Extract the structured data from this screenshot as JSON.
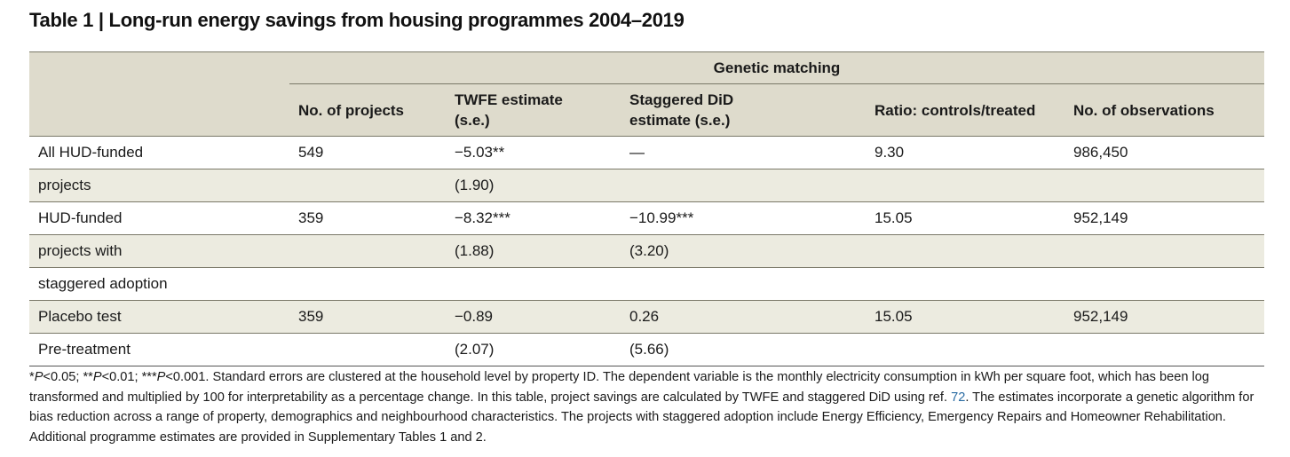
{
  "title": "Table 1 | Long-run energy savings from housing programmes 2004–2019",
  "table": {
    "group_header": "Genetic matching",
    "columns": [
      "No. of projects",
      "TWFE estimate (s.e.)",
      "Staggered DiD estimate (s.e.)",
      "Ratio: controls/treated",
      "No. of observations"
    ],
    "col_lines": {
      "twfe": [
        "TWFE estimate",
        "(s.e.)"
      ],
      "did": [
        "Staggered DiD",
        "estimate (s.e.)"
      ]
    },
    "rows": [
      {
        "label": "All HUD-funded",
        "projects": "549",
        "twfe": "−5.03**",
        "did": "—",
        "ratio": "9.30",
        "obs": "986,450"
      },
      {
        "label": "projects",
        "projects": "",
        "twfe": "(1.90)",
        "did": "",
        "ratio": "",
        "obs": ""
      },
      {
        "label": "HUD-funded",
        "projects": "359",
        "twfe": "−8.32***",
        "did": "−10.99***",
        "ratio": "15.05",
        "obs": "952,149"
      },
      {
        "label": "projects with",
        "projects": "",
        "twfe": "(1.88)",
        "did": "(3.20)",
        "ratio": "",
        "obs": ""
      },
      {
        "label": "staggered adoption",
        "projects": "",
        "twfe": "",
        "did": "",
        "ratio": "",
        "obs": ""
      },
      {
        "label": "Placebo test",
        "projects": "359",
        "twfe": "−0.89",
        "did": "0.26",
        "ratio": "15.05",
        "obs": "952,149"
      },
      {
        "label": "Pre-treatment",
        "projects": "",
        "twfe": "(2.07)",
        "did": "(5.66)",
        "ratio": "",
        "obs": ""
      }
    ]
  },
  "footnote": {
    "sig_p1": "P",
    "sig_t1": "<0.05; **",
    "sig_p2": "P",
    "sig_t2": "<0.01; ***",
    "sig_p3": "P",
    "sig_t3": "<0.001.",
    "text_a": " Standard errors are clustered at the household level by property ID. The dependent variable is the monthly electricity consumption in kWh per square foot, which has been log transformed and multiplied by 100 for interpretability as a percentage change. In this table, project savings are calculated by TWFE and staggered DiD using ref. ",
    "ref": "72",
    "text_b": ". The estimates incorporate a genetic algorithm for bias reduction across a range of property, demographics and neighbourhood characteristics. The projects with staggered adoption include Energy Efficiency, Emergency Repairs and Homeowner Rehabilitation. Additional programme estimates are provided in Supplementary Tables 1 and 2."
  }
}
